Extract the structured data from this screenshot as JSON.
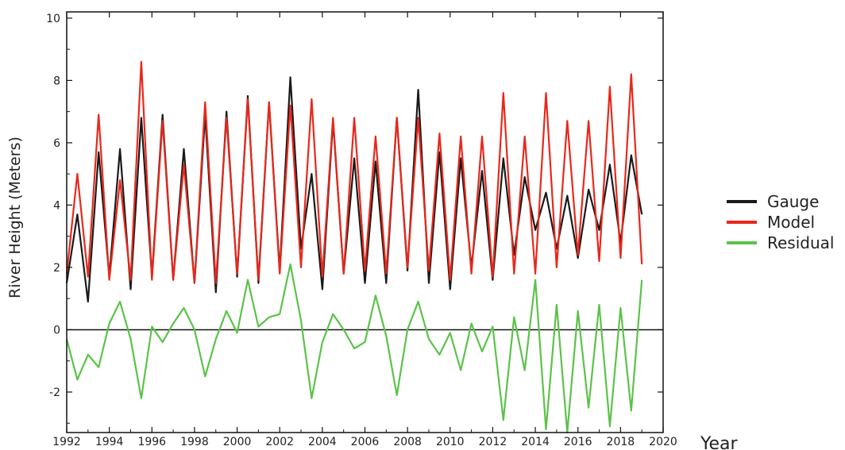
{
  "chart_data": {
    "type": "line",
    "xlabel": "Year",
    "ylabel": "River Height (Meters)",
    "xlim": [
      1992,
      2020
    ],
    "ylim": [
      -3.3,
      10.2
    ],
    "x_ticks": [
      1992,
      1994,
      1996,
      1998,
      2000,
      2002,
      2004,
      2006,
      2008,
      2010,
      2012,
      2014,
      2016,
      2018,
      2020
    ],
    "y_ticks": [
      -2,
      0,
      2,
      4,
      6,
      8,
      10
    ],
    "zero_line": 0,
    "legend_placement": "right, outside plot",
    "x": [
      1992.0,
      1992.5,
      1993.0,
      1993.5,
      1994.0,
      1994.5,
      1995.0,
      1995.5,
      1996.0,
      1996.5,
      1997.0,
      1997.5,
      1998.0,
      1998.5,
      1999.0,
      1999.5,
      2000.0,
      2000.5,
      2001.0,
      2001.5,
      2002.0,
      2002.5,
      2003.0,
      2003.5,
      2004.0,
      2004.5,
      2005.0,
      2005.5,
      2006.0,
      2006.5,
      2007.0,
      2007.5,
      2008.0,
      2008.5,
      2009.0,
      2009.5,
      2010.0,
      2010.5,
      2011.0,
      2011.5,
      2012.0,
      2012.5,
      2013.0,
      2013.5,
      2014.0,
      2014.5,
      2015.0,
      2015.5,
      2016.0,
      2016.5,
      2017.0,
      2017.5,
      2018.0,
      2018.5,
      2019.0
    ],
    "series": [
      {
        "name": "Gauge",
        "color": "#1a1a1a",
        "values": [
          1.5,
          3.7,
          0.9,
          5.7,
          1.7,
          5.8,
          1.3,
          6.8,
          1.7,
          6.9,
          1.6,
          5.8,
          1.5,
          6.9,
          1.2,
          7.0,
          1.7,
          7.5,
          1.5,
          7.3,
          1.9,
          8.1,
          2.6,
          5.0,
          1.3,
          6.7,
          1.8,
          5.5,
          1.5,
          5.4,
          1.5,
          6.8,
          1.9,
          7.7,
          1.5,
          5.7,
          1.3,
          5.5,
          2.0,
          5.1,
          1.6,
          5.5,
          2.4,
          4.9,
          3.2,
          4.4,
          2.6,
          4.3,
          2.3,
          4.5,
          3.2,
          5.3,
          2.8,
          5.6,
          3.7
        ]
      },
      {
        "name": "Model",
        "color": "#e8281c",
        "values": [
          1.8,
          5.0,
          1.7,
          6.9,
          1.6,
          4.8,
          1.6,
          8.6,
          1.6,
          6.7,
          1.6,
          5.3,
          1.5,
          7.3,
          1.5,
          6.8,
          1.8,
          7.4,
          1.6,
          7.3,
          1.8,
          7.2,
          2.0,
          7.4,
          1.7,
          6.8,
          1.8,
          6.8,
          1.9,
          6.2,
          1.8,
          6.8,
          2.0,
          6.8,
          1.9,
          6.3,
          1.6,
          6.2,
          1.8,
          6.2,
          1.7,
          7.6,
          1.8,
          6.2,
          1.8,
          7.6,
          2.0,
          6.7,
          2.4,
          6.7,
          2.2,
          7.8,
          2.3,
          8.2,
          2.1
        ]
      },
      {
        "name": "Residual",
        "color": "#5cc24a",
        "values": [
          -0.3,
          -1.6,
          -0.8,
          -1.2,
          0.2,
          0.9,
          -0.3,
          -2.2,
          0.1,
          -0.4,
          0.2,
          0.7,
          0.0,
          -1.5,
          -0.3,
          0.6,
          -0.1,
          1.6,
          0.1,
          0.4,
          0.5,
          2.1,
          0.3,
          -2.2,
          -0.4,
          0.5,
          0.0,
          -0.6,
          -0.4,
          1.1,
          -0.2,
          -2.1,
          0.0,
          0.9,
          -0.3,
          -0.8,
          -0.1,
          -1.3,
          0.2,
          -0.7,
          0.1,
          -2.9,
          0.4,
          -1.3,
          1.6,
          -3.2,
          0.8,
          -3.3,
          0.6,
          -2.5,
          0.8,
          -3.1,
          0.7,
          -2.6,
          1.6
        ]
      }
    ]
  }
}
